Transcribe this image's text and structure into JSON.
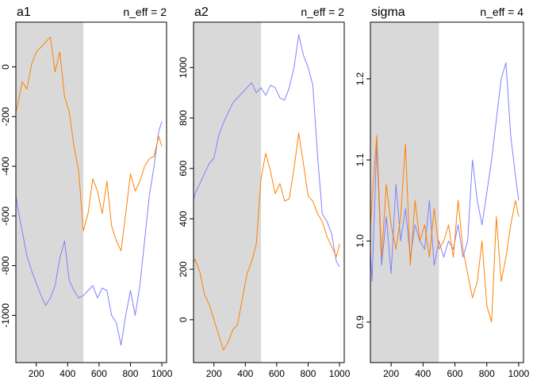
{
  "chart_data": [
    {
      "type": "line",
      "title": "a1",
      "annotation": "n_eff = 2",
      "xlabel": "",
      "ylabel": "",
      "xlim": [
        70,
        1030
      ],
      "ylim": [
        -1190,
        180
      ],
      "xticks": [
        200,
        400,
        600,
        800,
        1000
      ],
      "yticks": [
        -1000,
        -800,
        -600,
        -400,
        -200,
        0
      ],
      "warmup": [
        1,
        500
      ],
      "series": [
        {
          "color": "#8080ff",
          "x": [
            1,
            20,
            50,
            80,
            110,
            140,
            170,
            200,
            230,
            260,
            290,
            320,
            350,
            380,
            410,
            440,
            470,
            500,
            530,
            560,
            590,
            620,
            650,
            680,
            710,
            740,
            770,
            800,
            830,
            860,
            890,
            920,
            950,
            980,
            1000
          ],
          "y": [
            -140,
            -320,
            -430,
            -560,
            -660,
            -760,
            -820,
            -870,
            -920,
            -960,
            -930,
            -880,
            -770,
            -700,
            -860,
            -900,
            -930,
            -920,
            -900,
            -880,
            -930,
            -890,
            -900,
            -1000,
            -1030,
            -1120,
            -1000,
            -900,
            -1000,
            -880,
            -700,
            -520,
            -400,
            -260,
            -220
          ]
        },
        {
          "color": "#ff8000",
          "x": [
            1,
            20,
            50,
            80,
            110,
            140,
            170,
            200,
            230,
            260,
            290,
            320,
            350,
            380,
            410,
            440,
            470,
            500,
            530,
            560,
            590,
            620,
            650,
            680,
            710,
            740,
            770,
            800,
            830,
            860,
            890,
            920,
            950,
            980,
            1000
          ],
          "y": [
            -100,
            -130,
            -220,
            -160,
            -60,
            -90,
            10,
            60,
            80,
            100,
            120,
            -20,
            60,
            -120,
            -180,
            -320,
            -420,
            -660,
            -590,
            -450,
            -500,
            -590,
            -460,
            -640,
            -700,
            -740,
            -590,
            -430,
            -500,
            -460,
            -400,
            -370,
            -360,
            -280,
            -320
          ]
        }
      ]
    },
    {
      "type": "line",
      "title": "a2",
      "annotation": "n_eff = 2",
      "xlabel": "",
      "ylabel": "",
      "xlim": [
        70,
        1030
      ],
      "ylim": [
        -170,
        1180
      ],
      "xticks": [
        200,
        400,
        600,
        800,
        1000
      ],
      "yticks": [
        0,
        200,
        400,
        600,
        800,
        1000
      ],
      "warmup": [
        1,
        500
      ],
      "series": [
        {
          "color": "#8080ff",
          "x": [
            1,
            20,
            50,
            80,
            110,
            140,
            170,
            200,
            230,
            260,
            290,
            320,
            350,
            380,
            410,
            440,
            470,
            500,
            530,
            560,
            590,
            620,
            650,
            680,
            710,
            740,
            770,
            800,
            830,
            860,
            890,
            920,
            950,
            980,
            1000
          ],
          "y": [
            180,
            320,
            430,
            500,
            540,
            580,
            620,
            640,
            730,
            780,
            820,
            860,
            880,
            900,
            920,
            940,
            900,
            920,
            890,
            930,
            920,
            880,
            870,
            920,
            1000,
            1130,
            1050,
            1000,
            930,
            650,
            420,
            390,
            340,
            230,
            210
          ]
        },
        {
          "color": "#ff8000",
          "x": [
            1,
            20,
            50,
            80,
            110,
            140,
            170,
            200,
            230,
            260,
            290,
            320,
            350,
            380,
            410,
            440,
            470,
            500,
            530,
            560,
            590,
            620,
            650,
            680,
            710,
            740,
            770,
            800,
            830,
            860,
            890,
            920,
            950,
            980,
            1000
          ],
          "y": [
            110,
            130,
            200,
            240,
            190,
            100,
            60,
            0,
            -60,
            -120,
            -90,
            -40,
            -20,
            80,
            180,
            230,
            300,
            560,
            660,
            590,
            500,
            540,
            470,
            480,
            600,
            740,
            620,
            490,
            470,
            420,
            390,
            330,
            290,
            250,
            300
          ]
        }
      ]
    },
    {
      "type": "line",
      "title": "sigma",
      "annotation": "n_eff = 4",
      "xlabel": "",
      "ylabel": "",
      "xlim": [
        70,
        1030
      ],
      "ylim": [
        0.85,
        1.27
      ],
      "xticks": [
        200,
        400,
        600,
        800,
        1000
      ],
      "yticks": [
        0.9,
        1.0,
        1.1,
        1.2
      ],
      "warmup": [
        1,
        500
      ],
      "series": [
        {
          "color": "#8080ff",
          "x": [
            1,
            20,
            50,
            80,
            110,
            140,
            170,
            200,
            230,
            260,
            290,
            320,
            350,
            380,
            410,
            440,
            470,
            500,
            530,
            560,
            590,
            620,
            650,
            680,
            710,
            740,
            770,
            800,
            830,
            860,
            890,
            920,
            950,
            980,
            1000
          ],
          "y": [
            1.01,
            0.98,
            1.06,
            0.95,
            1.12,
            0.97,
            1.03,
            0.96,
            1.07,
            1.0,
            1.04,
            0.98,
            1.02,
            1.0,
            0.99,
            1.05,
            0.97,
            1.0,
            0.98,
            1.0,
            0.99,
            1.02,
            0.98,
            1.0,
            1.1,
            1.05,
            1.02,
            1.06,
            1.1,
            1.15,
            1.2,
            1.22,
            1.13,
            1.08,
            1.05
          ]
        },
        {
          "color": "#ff8000",
          "x": [
            1,
            20,
            50,
            80,
            110,
            140,
            170,
            200,
            230,
            260,
            290,
            320,
            350,
            380,
            410,
            440,
            470,
            500,
            530,
            560,
            590,
            620,
            650,
            680,
            710,
            740,
            770,
            800,
            830,
            860,
            890,
            920,
            950,
            980,
            1000
          ],
          "y": [
            0.99,
            1.1,
            0.95,
            1.05,
            1.13,
            0.98,
            1.07,
            1.02,
            0.99,
            1.03,
            1.12,
            0.97,
            1.05,
            1.0,
            1.02,
            0.98,
            1.04,
            0.99,
            1.0,
            1.02,
            0.98,
            1.05,
            0.99,
            0.96,
            0.93,
            0.95,
            1.0,
            0.92,
            0.9,
            1.03,
            0.95,
            0.98,
            1.02,
            1.05,
            1.03
          ]
        }
      ]
    }
  ]
}
